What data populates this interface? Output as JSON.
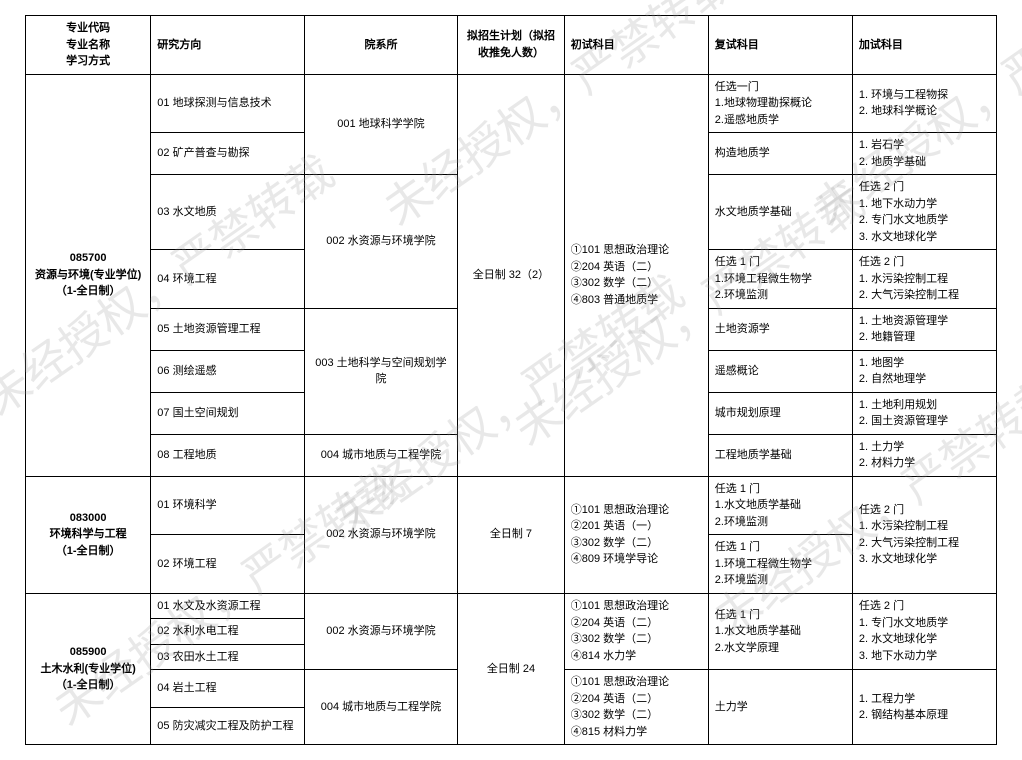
{
  "watermark_text": "未经授权，严禁转载",
  "headers": {
    "col1": "专业代码\n专业名称\n学习方式",
    "col2": "研究方向",
    "col3": "院系所",
    "col4": "拟招生计划（拟招收推免人数）",
    "col5": "初试科目",
    "col6": "复试科目",
    "col7": "加试科目"
  },
  "majors": [
    {
      "code_block": "085700\n资源与环境(专业学位)\n（1-全日制）",
      "plan": "全日制 32（2）",
      "exam_initial": "①101 思想政治理论\n②204 英语（二）\n③302 数学（二）\n④803 普通地质学",
      "rows": [
        {
          "dir": "01 地球探测与信息技术",
          "dept": "001 地球科学学院",
          "retest": "任选一门\n1.地球物理勘探概论\n2.遥感地质学",
          "extra": "1. 环境与工程物探\n2. 地球科学概论"
        },
        {
          "dir": "02 矿产普查与勘探",
          "dept": "",
          "retest": "构造地质学",
          "extra": "1. 岩石学\n2. 地质学基础"
        },
        {
          "dir": "03 水文地质",
          "dept": "002 水资源与环境学院",
          "retest": "水文地质学基础",
          "extra": "任选 2 门\n1. 地下水动力学\n2. 专门水文地质学\n3. 水文地球化学"
        },
        {
          "dir": "04 环境工程",
          "dept": "",
          "retest": "任选 1 门\n1.环境工程微生物学\n2.环境监测",
          "extra": "任选 2 门\n1. 水污染控制工程\n2. 大气污染控制工程"
        },
        {
          "dir": "05 土地资源管理工程",
          "dept": "003 土地科学与空间规划学院",
          "retest": "土地资源学",
          "extra": "1. 土地资源管理学\n2. 地籍管理"
        },
        {
          "dir": "06 测绘遥感",
          "dept": "",
          "retest": "遥感概论",
          "extra": "1. 地图学\n2. 自然地理学"
        },
        {
          "dir": "07 国土空间规划",
          "dept": "",
          "retest": "城市规划原理",
          "extra": "1. 土地利用规划\n2. 国土资源管理学"
        },
        {
          "dir": "08 工程地质",
          "dept": "004 城市地质与工程学院",
          "retest": "工程地质学基础",
          "extra": "1. 土力学\n2. 材料力学"
        }
      ]
    },
    {
      "code_block": "083000\n环境科学与工程\n（1-全日制）",
      "plan": "全日制 7",
      "exam_initial": "①101 思想政治理论\n②201 英语（一）\n③302 数学（二）\n④809 环境学导论",
      "rows": [
        {
          "dir": "01 环境科学",
          "dept": "002 水资源与环境学院",
          "retest": "任选 1 门\n1.水文地质学基础\n2.环境监测",
          "extra": "任选 2 门\n1. 水污染控制工程\n2. 大气污染控制工程\n3. 水文地球化学"
        },
        {
          "dir": "02 环境工程",
          "dept": "",
          "retest": "任选 1 门\n1.环境工程微生物学\n2.环境监测",
          "extra": ""
        }
      ]
    },
    {
      "code_block": "085900\n土木水利(专业学位)\n（1-全日制）",
      "plan": "全日制 24",
      "rows": [
        {
          "dir": "01 水文及水资源工程",
          "dept": "002 水资源与环境学院",
          "init": "①101 思想政治理论\n②204 英语（二）\n③302 数学（二）\n④814 水力学",
          "retest": "任选 1 门\n1.水文地质学基础\n2.水文学原理",
          "extra": "任选 2 门\n1. 专门水文地质学\n2. 水文地球化学\n3. 地下水动力学"
        },
        {
          "dir": "02 水利水电工程",
          "dept": "",
          "init": "",
          "retest": "",
          "extra": ""
        },
        {
          "dir": "03 农田水土工程",
          "dept": "",
          "init": "",
          "retest": "",
          "extra": ""
        },
        {
          "dir": "04 岩土工程",
          "dept": "004 城市地质与工程学院",
          "init": "①101 思想政治理论\n②204 英语（二）\n③302 数学（二）\n④815 材料力学",
          "retest": "土力学",
          "extra": "1. 工程力学\n2. 钢结构基本原理"
        },
        {
          "dir": "05 防灾减灾工程及防护工程",
          "dept": "",
          "init": "",
          "retest": "",
          "extra": ""
        }
      ]
    }
  ]
}
